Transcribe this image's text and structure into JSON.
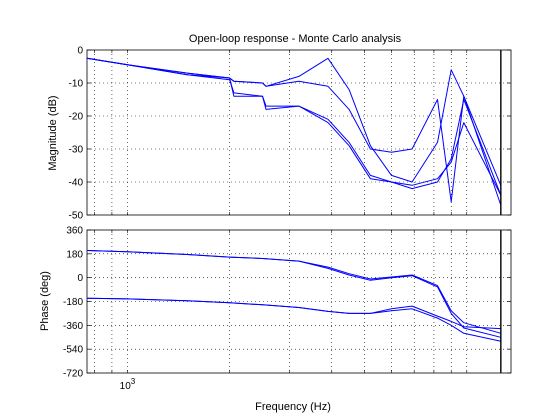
{
  "chart_data": {
    "type": "line",
    "title": "Open-loop response - Monte Carlo analysis",
    "xlabel": "Frequency  (Hz)",
    "xscale": "log",
    "xlim": [
      760,
      13500
    ],
    "x_tick_labels": [
      {
        "value": 1000,
        "base": "10",
        "exp": "3"
      }
    ],
    "vertical_marker_hz": 12600,
    "line_color": "#0000ff",
    "grid": true,
    "panels": [
      {
        "name": "magnitude",
        "ylabel": "Magnitude (dB)",
        "ylim": [
          -50,
          0
        ],
        "yticks": [
          0,
          -10,
          -20,
          -30,
          -40,
          -50
        ],
        "series": [
          {
            "x": [
              760,
              1000,
              1500,
              2000,
              2060,
              2500,
              2560,
              3200,
              3900,
              4500,
              5200,
              6000,
              6900,
              8200,
              9000,
              9800,
              12600
            ],
            "y": [
              -2.5,
              -4.5,
              -7,
              -8.5,
              -9.5,
              -10,
              -11,
              -8,
              -2.5,
              -12,
              -29,
              -38,
              -40,
              -28,
              -6,
              -14,
              -47
            ]
          },
          {
            "x": [
              760,
              1000,
              1500,
              2000,
              2060,
              2500,
              2560,
              3200,
              3900,
              4500,
              5200,
              6000,
              6900,
              8200,
              9000,
              9800,
              12600
            ],
            "y": [
              -2.5,
              -4.5,
              -7,
              -8.5,
              -9.5,
              -10,
              -11,
              -9.5,
              -11,
              -18,
              -30,
              -31,
              -30,
              -15,
              -46,
              -14,
              -41
            ]
          },
          {
            "x": [
              760,
              1000,
              1500,
              2000,
              2060,
              2500,
              2560,
              3200,
              3900,
              4500,
              5200,
              6000,
              6900,
              8200,
              9000,
              9800,
              12600
            ],
            "y": [
              -2.5,
              -4.5,
              -7.5,
              -8.5,
              -14,
              -14,
              -18,
              -17,
              -21,
              -28,
              -38,
              -40,
              -41,
              -39,
              -34,
              -22,
              -44
            ]
          },
          {
            "x": [
              760,
              1000,
              1500,
              2000,
              2060,
              2500,
              2560,
              3200,
              3900,
              4500,
              5200,
              6000,
              6900,
              8200,
              9000,
              9800,
              12600
            ],
            "y": [
              -2.5,
              -4.5,
              -7.5,
              -9,
              -13,
              -14,
              -17,
              -17,
              -22,
              -29,
              -39,
              -40,
              -42,
              -40,
              -33,
              -15,
              -44
            ]
          }
        ]
      },
      {
        "name": "phase",
        "ylabel": "Phase (deg)",
        "ylim": [
          -720,
          360
        ],
        "yticks": [
          360,
          180,
          0,
          -180,
          -360,
          -540,
          -720
        ],
        "series": [
          {
            "x": [
              760,
              1000,
              1500,
              2000,
              2500,
              3200,
              3900,
              4500,
              5200,
              6000,
              6900,
              8200,
              9000,
              9800,
              12600
            ],
            "y": [
              205,
              195,
              175,
              155,
              145,
              125,
              80,
              30,
              -10,
              5,
              20,
              -60,
              -250,
              -340,
              -420
            ]
          },
          {
            "x": [
              760,
              1000,
              1500,
              2000,
              2500,
              3200,
              3900,
              4500,
              5200,
              6000,
              6900,
              8200,
              9000,
              9800,
              12600
            ],
            "y": [
              205,
              195,
              175,
              155,
              145,
              125,
              70,
              20,
              -20,
              0,
              15,
              -70,
              -270,
              -380,
              -450
            ]
          },
          {
            "x": [
              760,
              1000,
              1500,
              2000,
              2500,
              3200,
              3900,
              4500,
              5200,
              6000,
              6900,
              8200,
              9000,
              9800,
              12600
            ],
            "y": [
              -155,
              -160,
              -175,
              -190,
              -205,
              -225,
              -255,
              -270,
              -270,
              -235,
              -215,
              -290,
              -330,
              -370,
              -385
            ]
          },
          {
            "x": [
              760,
              1000,
              1500,
              2000,
              2500,
              3200,
              3900,
              4500,
              5200,
              6000,
              6900,
              8200,
              9000,
              9800,
              12600
            ],
            "y": [
              -155,
              -160,
              -175,
              -190,
              -205,
              -225,
              -255,
              -270,
              -270,
              -250,
              -235,
              -305,
              -360,
              -420,
              -480
            ]
          }
        ]
      }
    ]
  }
}
